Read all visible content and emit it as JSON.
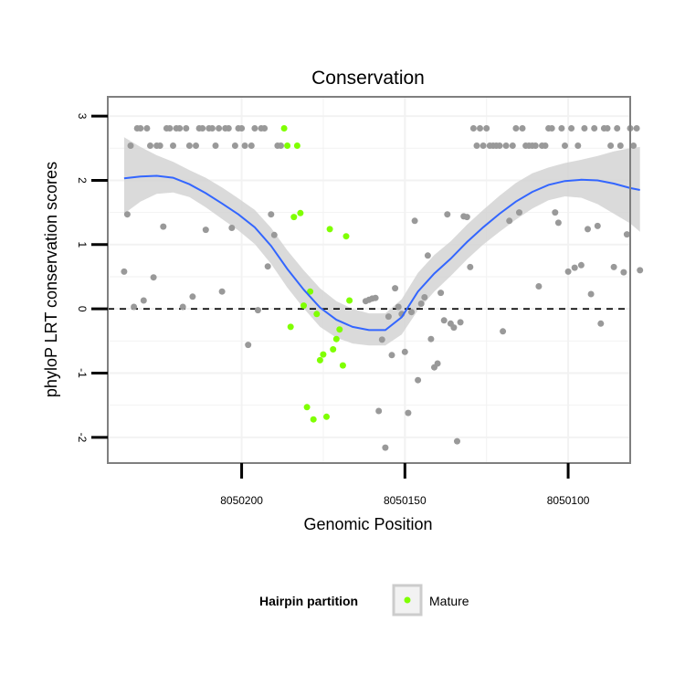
{
  "chart_data": {
    "type": "scatter",
    "title": "Conservation",
    "xlabel": "Genomic Position",
    "ylabel": "phyloP LRT conservation scores",
    "x_reversed": true,
    "xlim": [
      8050241,
      8050081
    ],
    "ylim": [
      -2.4,
      3.3
    ],
    "x_ticks": [
      8050200,
      8050150,
      8050100
    ],
    "x_tick_labels": [
      "8050200",
      "8050150",
      "8050100"
    ],
    "y_ticks": [
      -2,
      -1,
      0,
      1,
      2,
      3
    ],
    "y_tick_labels": [
      "-2",
      "-1",
      "0",
      "1",
      "2",
      "3"
    ],
    "reference_line": {
      "y": 0,
      "style": "dashed"
    },
    "legend": {
      "title": "Hairpin partition",
      "entries": [
        "Mature"
      ],
      "position": "bottom"
    },
    "colors": {
      "other": "#999999",
      "mature": "#7FFF00",
      "smooth": "#3366FF",
      "band": "#D3D3D3",
      "grid": "#F2F2F2",
      "frame": "#7F7F7F",
      "ref_line": "#000000"
    },
    "series": [
      {
        "name": "Other",
        "points": [
          [
            8050236,
            0.58
          ],
          [
            8050235,
            1.47
          ],
          [
            8050234,
            2.54
          ],
          [
            8050233,
            0.03
          ],
          [
            8050232,
            2.81
          ],
          [
            8050231,
            2.81
          ],
          [
            8050230,
            0.13
          ],
          [
            8050229,
            2.81
          ],
          [
            8050228,
            2.54
          ],
          [
            8050227,
            0.49
          ],
          [
            8050226,
            2.54
          ],
          [
            8050225,
            2.54
          ],
          [
            8050224,
            1.28
          ],
          [
            8050223,
            2.81
          ],
          [
            8050222,
            2.81
          ],
          [
            8050221,
            2.54
          ],
          [
            8050220,
            2.81
          ],
          [
            8050219,
            2.81
          ],
          [
            8050218,
            0.03
          ],
          [
            8050217,
            2.81
          ],
          [
            8050216,
            2.54
          ],
          [
            8050215,
            0.19
          ],
          [
            8050214,
            2.54
          ],
          [
            8050213,
            2.81
          ],
          [
            8050212,
            2.81
          ],
          [
            8050211,
            1.23
          ],
          [
            8050210,
            2.81
          ],
          [
            8050209,
            2.81
          ],
          [
            8050208,
            2.54
          ],
          [
            8050207,
            2.81
          ],
          [
            8050206,
            0.27
          ],
          [
            8050205,
            2.81
          ],
          [
            8050204,
            2.81
          ],
          [
            8050203,
            1.26
          ],
          [
            8050202,
            2.54
          ],
          [
            8050201,
            2.81
          ],
          [
            8050200,
            2.81
          ],
          [
            8050199,
            2.54
          ],
          [
            8050198,
            -0.56
          ],
          [
            8050197,
            2.54
          ],
          [
            8050196,
            2.81
          ],
          [
            8050195,
            -0.02
          ],
          [
            8050194,
            2.81
          ],
          [
            8050193,
            2.81
          ],
          [
            8050192,
            0.66
          ],
          [
            8050191,
            1.47
          ],
          [
            8050190,
            1.15
          ],
          [
            8050189,
            2.54
          ],
          [
            8050188,
            2.54
          ],
          [
            8050162,
            0.12
          ],
          [
            8050161,
            0.14
          ],
          [
            8050160,
            0.16
          ],
          [
            8050159,
            0.17
          ],
          [
            8050158,
            -1.59
          ],
          [
            8050157,
            -0.48
          ],
          [
            8050156,
            -2.16
          ],
          [
            8050155,
            -0.12
          ],
          [
            8050154,
            -0.72
          ],
          [
            8050153,
            0.32
          ],
          [
            8050152,
            0.03
          ],
          [
            8050151,
            -0.08
          ],
          [
            8050150,
            -0.67
          ],
          [
            8050149,
            -1.62
          ],
          [
            8050148,
            -0.05
          ],
          [
            8050147,
            1.37
          ],
          [
            8050146,
            -1.11
          ],
          [
            8050145,
            0.08
          ],
          [
            8050144,
            0.18
          ],
          [
            8050143,
            0.83
          ],
          [
            8050142,
            -0.47
          ],
          [
            8050141,
            -0.91
          ],
          [
            8050140,
            -0.85
          ],
          [
            8050139,
            0.25
          ],
          [
            8050138,
            -0.18
          ],
          [
            8050137,
            1.47
          ],
          [
            8050136,
            -0.23
          ],
          [
            8050135,
            -0.29
          ],
          [
            8050134,
            -2.06
          ],
          [
            8050133,
            -0.21
          ],
          [
            8050132,
            1.44
          ],
          [
            8050131,
            1.43
          ],
          [
            8050130,
            0.65
          ],
          [
            8050129,
            2.81
          ],
          [
            8050128,
            2.54
          ],
          [
            8050127,
            2.81
          ],
          [
            8050126,
            2.54
          ],
          [
            8050125,
            2.81
          ],
          [
            8050124,
            2.54
          ],
          [
            8050123,
            2.54
          ],
          [
            8050122,
            2.54
          ],
          [
            8050121,
            2.54
          ],
          [
            8050120,
            -0.35
          ],
          [
            8050119,
            2.54
          ],
          [
            8050118,
            1.37
          ],
          [
            8050117,
            2.54
          ],
          [
            8050116,
            2.81
          ],
          [
            8050115,
            1.5
          ],
          [
            8050114,
            2.81
          ],
          [
            8050113,
            2.54
          ],
          [
            8050112,
            2.54
          ],
          [
            8050111,
            2.54
          ],
          [
            8050110,
            2.54
          ],
          [
            8050109,
            0.35
          ],
          [
            8050108,
            2.54
          ],
          [
            8050107,
            2.54
          ],
          [
            8050106,
            2.81
          ],
          [
            8050105,
            2.81
          ],
          [
            8050104,
            1.5
          ],
          [
            8050103,
            1.34
          ],
          [
            8050102,
            2.81
          ],
          [
            8050101,
            2.54
          ],
          [
            8050100,
            0.58
          ],
          [
            8050099,
            2.81
          ],
          [
            8050098,
            0.64
          ],
          [
            8050097,
            2.54
          ],
          [
            8050096,
            0.68
          ],
          [
            8050095,
            2.81
          ],
          [
            8050094,
            1.24
          ],
          [
            8050093,
            0.23
          ],
          [
            8050092,
            2.81
          ],
          [
            8050091,
            1.29
          ],
          [
            8050090,
            -0.23
          ],
          [
            8050089,
            2.81
          ],
          [
            8050088,
            2.81
          ],
          [
            8050087,
            2.54
          ],
          [
            8050086,
            0.65
          ],
          [
            8050085,
            2.81
          ],
          [
            8050084,
            2.54
          ],
          [
            8050083,
            0.57
          ],
          [
            8050082,
            1.16
          ],
          [
            8050081,
            2.81
          ],
          [
            8050080,
            2.54
          ],
          [
            8050079,
            2.81
          ],
          [
            8050078,
            0.6
          ]
        ]
      },
      {
        "name": "Mature",
        "points": [
          [
            8050187,
            2.81
          ],
          [
            8050186,
            2.54
          ],
          [
            8050185,
            -0.28
          ],
          [
            8050184,
            1.43
          ],
          [
            8050183,
            2.54
          ],
          [
            8050182,
            1.49
          ],
          [
            8050181,
            0.05
          ],
          [
            8050180,
            -1.53
          ],
          [
            8050179,
            0.27
          ],
          [
            8050178,
            -1.72
          ],
          [
            8050177,
            -0.08
          ],
          [
            8050176,
            -0.8
          ],
          [
            8050175,
            -0.71
          ],
          [
            8050174,
            -1.68
          ],
          [
            8050173,
            1.24
          ],
          [
            8050172,
            -0.63
          ],
          [
            8050171,
            -0.47
          ],
          [
            8050170,
            -0.32
          ],
          [
            8050169,
            -0.88
          ],
          [
            8050168,
            1.13
          ],
          [
            8050167,
            0.13
          ]
        ]
      }
    ],
    "smooth_curve": {
      "x": [
        8050236,
        8050231,
        8050226,
        8050221,
        8050216,
        8050211,
        8050206,
        8050201,
        8050196,
        8050191,
        8050186,
        8050181,
        8050176,
        8050171,
        8050166,
        8050161,
        8050156,
        8050151,
        8050146,
        8050141,
        8050136,
        8050131,
        8050126,
        8050121,
        8050116,
        8050111,
        8050106,
        8050101,
        8050096,
        8050091,
        8050086,
        8050081,
        8050078
      ],
      "y": [
        2.03,
        2.06,
        2.07,
        2.04,
        1.94,
        1.8,
        1.64,
        1.47,
        1.27,
        0.98,
        0.62,
        0.3,
        0.02,
        -0.17,
        -0.28,
        -0.33,
        -0.33,
        -0.13,
        0.27,
        0.55,
        0.78,
        1.04,
        1.27,
        1.48,
        1.67,
        1.82,
        1.93,
        1.99,
        2.01,
        2.0,
        1.95,
        1.88,
        1.85
      ],
      "lower": [
        1.48,
        1.67,
        1.79,
        1.81,
        1.74,
        1.58,
        1.4,
        1.22,
        1.01,
        0.7,
        0.33,
        0.01,
        -0.28,
        -0.45,
        -0.54,
        -0.57,
        -0.57,
        -0.4,
        -0.02,
        0.27,
        0.51,
        0.77,
        1.0,
        1.2,
        1.39,
        1.56,
        1.69,
        1.75,
        1.73,
        1.63,
        1.48,
        1.33,
        1.2
      ],
      "upper": [
        2.67,
        2.52,
        2.39,
        2.29,
        2.16,
        2.04,
        1.89,
        1.72,
        1.54,
        1.26,
        0.91,
        0.6,
        0.32,
        0.12,
        0.0,
        -0.07,
        -0.07,
        0.15,
        0.56,
        0.84,
        1.05,
        1.31,
        1.54,
        1.76,
        1.96,
        2.11,
        2.2,
        2.27,
        2.32,
        2.38,
        2.45,
        2.5,
        2.52
      ]
    }
  }
}
